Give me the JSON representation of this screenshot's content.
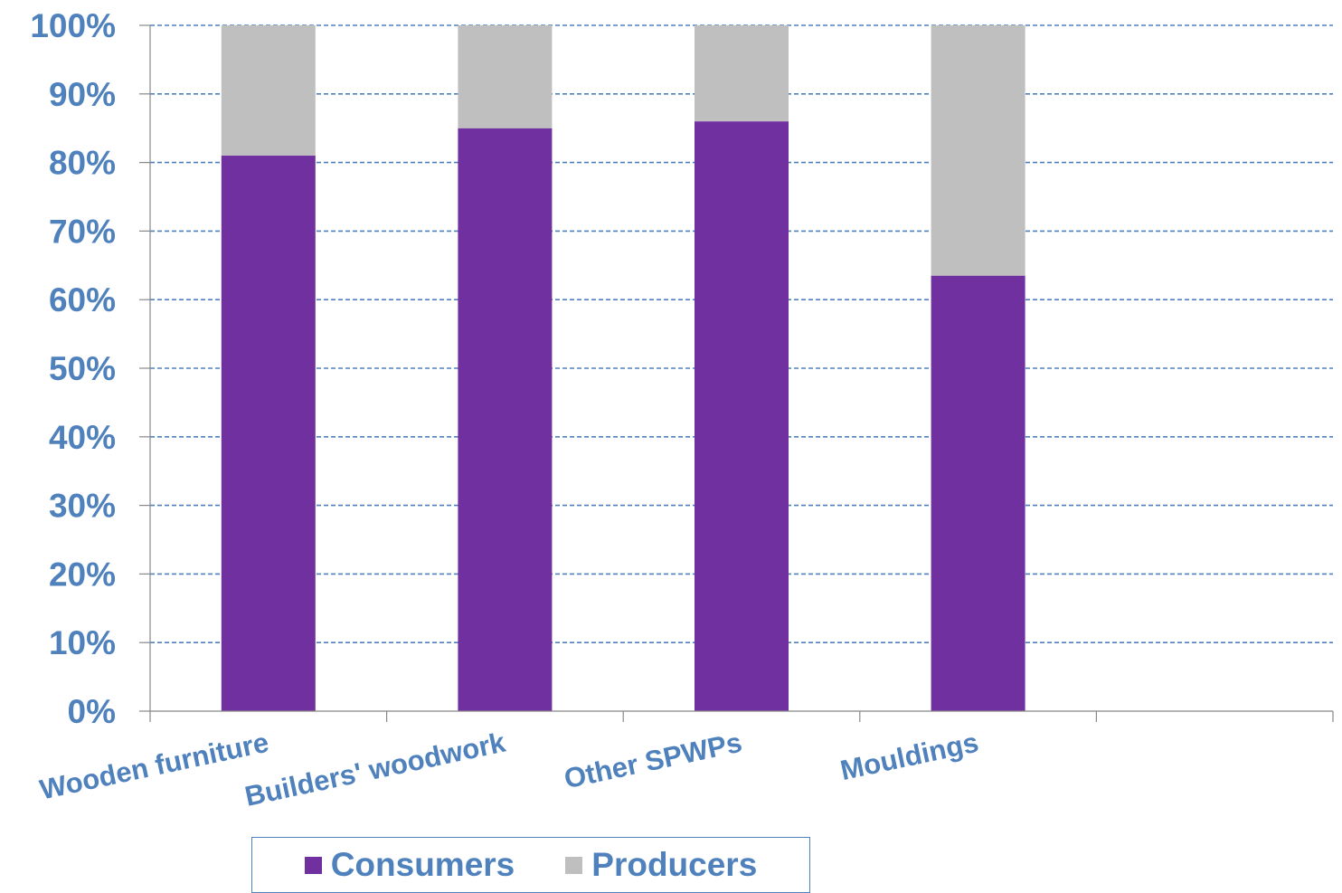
{
  "chart_data": {
    "type": "bar",
    "stacked": true,
    "categories": [
      "Wooden furniture",
      "Builders' woodwork",
      "Other SPWPs",
      "Mouldings",
      ""
    ],
    "series": [
      {
        "name": "Consumers",
        "values": [
          81,
          85,
          86,
          63.5,
          null
        ],
        "color": "#7030a0"
      },
      {
        "name": "Producers",
        "values": [
          19,
          15,
          14,
          36.5,
          null
        ],
        "color": "#bfbfbf"
      }
    ],
    "ylim": [
      0,
      100
    ],
    "y_ticks": [
      "0%",
      "10%",
      "20%",
      "30%",
      "40%",
      "50%",
      "60%",
      "70%",
      "80%",
      "90%",
      "100%"
    ],
    "grid": true,
    "legend_position": "bottom",
    "label_color": "#4f81bd",
    "grid_color": "#4f81bd"
  }
}
